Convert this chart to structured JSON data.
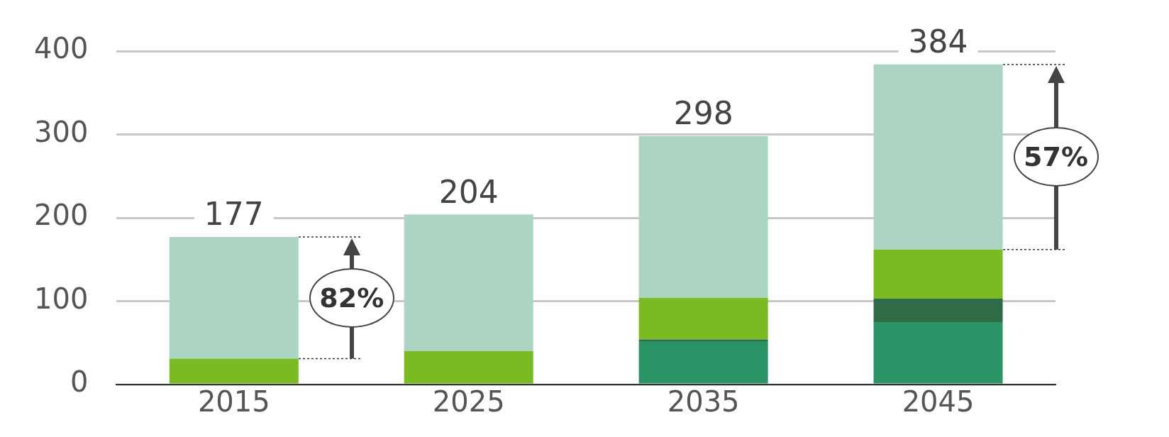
{
  "chart_data": {
    "type": "bar",
    "stacked": true,
    "categories": [
      "2015",
      "2025",
      "2035",
      "2045"
    ],
    "series": [
      {
        "color": "#2a9467",
        "values": [
          0,
          0,
          52,
          75
        ]
      },
      {
        "color": "#2e6b47",
        "values": [
          0,
          0,
          2,
          28
        ]
      },
      {
        "color": "#7aba22",
        "values": [
          31,
          40,
          50,
          59
        ]
      },
      {
        "color": "#abd5c2",
        "values": [
          146,
          164,
          194,
          222
        ]
      }
    ],
    "ylim": [
      0,
      400
    ],
    "yticks": [
      0,
      100,
      200,
      300,
      400
    ],
    "grid": "y",
    "legend": false,
    "totals": [
      "177",
      "204",
      "298",
      "384"
    ],
    "annotations": [
      "82%",
      "57%"
    ]
  }
}
